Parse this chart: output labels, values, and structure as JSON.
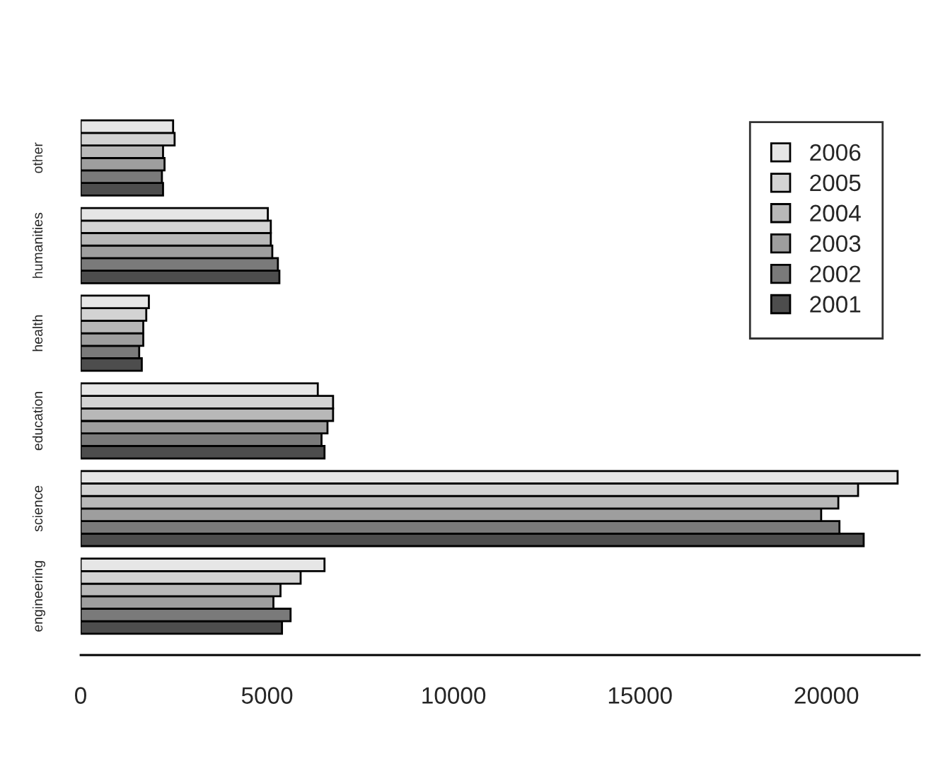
{
  "chart_data": {
    "type": "bar",
    "orientation": "horizontal",
    "categories": [
      "other",
      "humanities",
      "health",
      "education",
      "science",
      "engineering"
    ],
    "series": [
      {
        "name": "2001",
        "color": "#4d4d4d",
        "values": [
          2210,
          5330,
          1640,
          6540,
          21000,
          5400
        ]
      },
      {
        "name": "2002",
        "color": "#7a7a7a",
        "values": [
          2180,
          5290,
          1570,
          6460,
          20350,
          5630
        ]
      },
      {
        "name": "2003",
        "color": "#9e9e9e",
        "values": [
          2250,
          5140,
          1680,
          6620,
          19860,
          5170
        ]
      },
      {
        "name": "2004",
        "color": "#b8b8b8",
        "values": [
          2210,
          5100,
          1680,
          6770,
          20320,
          5360
        ]
      },
      {
        "name": "2005",
        "color": "#d3d3d3",
        "values": [
          2520,
          5100,
          1760,
          6770,
          20850,
          5900
        ]
      },
      {
        "name": "2006",
        "color": "#e6e6e6",
        "values": [
          2480,
          5020,
          1830,
          6360,
          21910,
          6540
        ]
      }
    ],
    "xlim": [
      0,
      22500
    ],
    "xticks": [
      0,
      5000,
      10000,
      15000,
      20000
    ],
    "legend": "top right",
    "grid": false
  }
}
